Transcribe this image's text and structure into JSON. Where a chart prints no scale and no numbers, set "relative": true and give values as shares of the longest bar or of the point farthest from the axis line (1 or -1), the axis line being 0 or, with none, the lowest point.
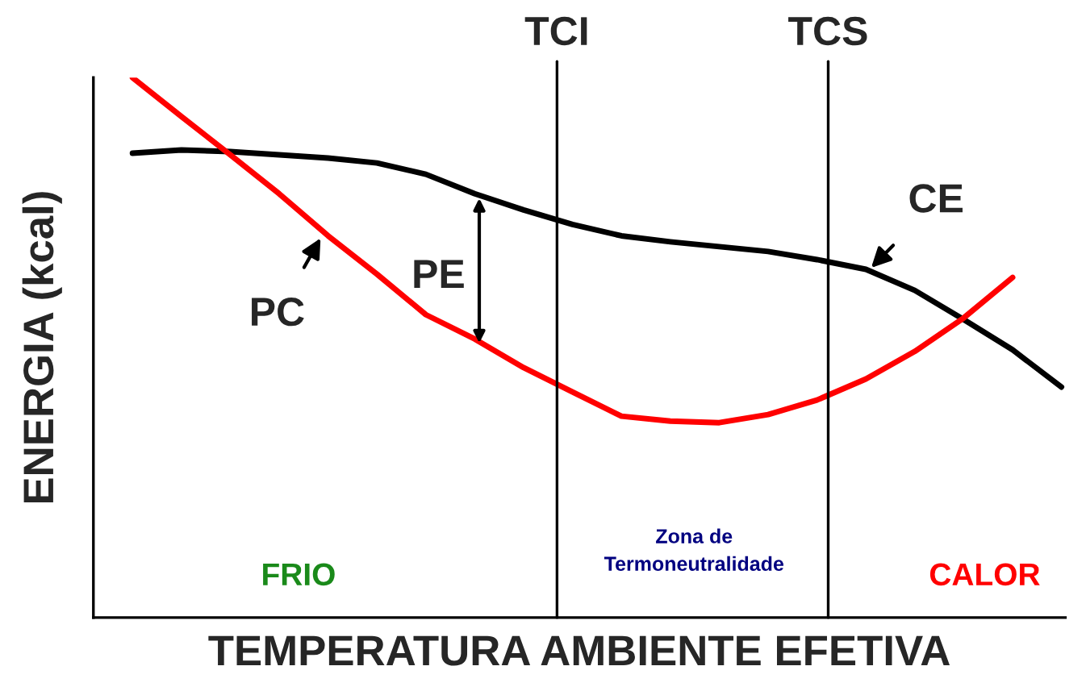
{
  "chart_data": {
    "type": "line",
    "relative": true,
    "xlabel": "TEMPERATURA AMBIENTE EFETIVA",
    "ylabel": "ENERGIA (kcal)",
    "categories": [
      null,
      null,
      null,
      null,
      null,
      null,
      null,
      null,
      null,
      null,
      null,
      null,
      null,
      null,
      null,
      null,
      null,
      null,
      null,
      null
    ],
    "series": [
      {
        "color": "#000000",
        "values": [
          0.86,
          0.866,
          0.863,
          0.857,
          0.851,
          0.842,
          0.821,
          0.785,
          0.755,
          0.728,
          0.707,
          0.696,
          0.687,
          0.678,
          0.663,
          0.645,
          0.606,
          0.552,
          0.496,
          0.427
        ]
      },
      {
        "color": "#ff0000",
        "values": [
          1.0,
          0.928,
          0.857,
          0.785,
          0.707,
          0.636,
          0.561,
          0.516,
          0.463,
          0.418,
          0.373,
          0.364,
          0.361,
          0.376,
          0.403,
          0.442,
          0.493,
          0.555,
          0.63,
          null
        ]
      }
    ],
    "annotations": [
      "TCI",
      "TCS",
      "PE",
      "PC",
      "CE",
      "FRIO",
      "Zona de\nTermoneutralidade",
      "CALOR"
    ]
  }
}
